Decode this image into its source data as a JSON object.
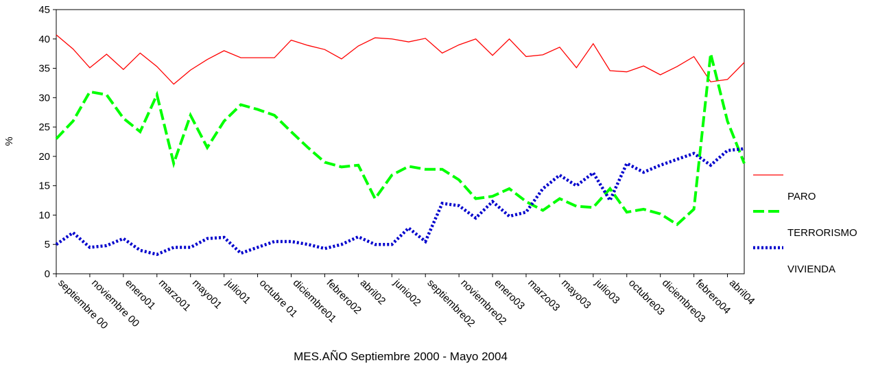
{
  "chart_data": {
    "type": "line",
    "xlabel": "MES.AÑO Septiembre 2000 - Mayo 2004",
    "ylabel": "%",
    "categories": [
      "septiembre 00",
      null,
      "noviembre 00",
      null,
      "enero01",
      null,
      "marzo01",
      null,
      "mayo01",
      null,
      "julio01",
      null,
      "octubre 01",
      null,
      "diciembre01",
      null,
      "febrero02",
      null,
      "abril02",
      null,
      "junio02",
      null,
      "septiembre02",
      null,
      "noviembre02",
      null,
      "enero03",
      null,
      "marzo03",
      null,
      "mayo03",
      null,
      "julio03",
      null,
      "octubre03",
      null,
      "diciembre03",
      null,
      "febrero04",
      null,
      "abril04",
      null
    ],
    "series": [
      {
        "name": "PARO",
        "color": "#ff0000",
        "values": [
          40.7,
          38.3,
          35.1,
          37.4,
          34.8,
          37.6,
          35.3,
          32.3,
          34.7,
          36.5,
          38.0,
          36.8,
          36.8,
          36.8,
          39.8,
          38.9,
          38.2,
          36.6,
          38.8,
          40.2,
          40.0,
          39.5,
          40.1,
          37.6,
          39.0,
          40.0,
          37.2,
          40.0,
          37.0,
          37.3,
          38.6,
          35.1,
          39.2,
          34.6,
          34.4,
          35.4,
          33.9,
          35.3,
          37.0,
          32.7,
          33.1,
          36.0
        ]
      },
      {
        "name": "TERRORISMO",
        "color": "#00ff00",
        "values": [
          23.0,
          26.0,
          31.0,
          30.5,
          26.5,
          24.2,
          30.5,
          18.8,
          27.0,
          21.5,
          26.0,
          28.8,
          28.0,
          27.0,
          24.2,
          21.5,
          19.0,
          18.2,
          18.5,
          12.8,
          16.8,
          18.3,
          17.8,
          17.8,
          16.0,
          12.8,
          13.2,
          14.5,
          12.3,
          10.8,
          12.8,
          11.5,
          11.3,
          14.5,
          10.5,
          11.0,
          10.2,
          8.4,
          11.0,
          37.5,
          26.0,
          18.8
        ]
      },
      {
        "name": "VIVIENDA",
        "color": "#0000cc",
        "values": [
          5.0,
          7.0,
          4.5,
          4.8,
          6.0,
          4.0,
          3.3,
          4.5,
          4.5,
          6.0,
          6.2,
          3.5,
          4.5,
          5.5,
          5.5,
          5.0,
          4.3,
          5.0,
          6.3,
          5.0,
          5.0,
          7.8,
          5.5,
          12.0,
          11.6,
          9.5,
          12.3,
          9.8,
          10.5,
          14.5,
          16.8,
          15.0,
          17.2,
          12.5,
          18.8,
          17.3,
          18.5,
          19.5,
          20.5,
          18.5,
          21.0,
          21.3
        ]
      }
    ],
    "ylim": [
      0,
      45
    ],
    "yticks": [
      0,
      5,
      10,
      15,
      20,
      25,
      30,
      35,
      40,
      45
    ]
  }
}
